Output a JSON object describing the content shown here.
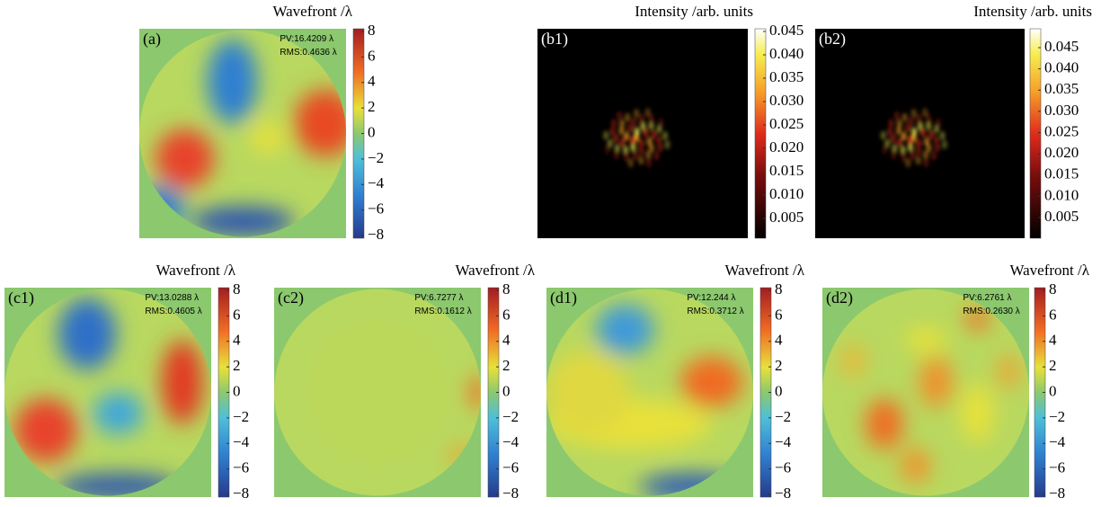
{
  "panels": [
    {
      "label": "(a)",
      "title": "Wavefront /λ",
      "pv": "PV:16.4209 λ",
      "rms": "RMS:0.4636 λ",
      "ticks": [
        "8",
        "6",
        "4",
        "2",
        "0",
        "−2",
        "−4",
        "−6",
        "−8"
      ]
    },
    {
      "label": "(b1)",
      "title": "Intensity /arb. units",
      "ticks": [
        "0.045",
        "0.040",
        "0.035",
        "0.030",
        "0.025",
        "0.020",
        "0.015",
        "0.010",
        "0.005"
      ]
    },
    {
      "label": "(b2)",
      "title": "Intensity /arb. units",
      "ticks": [
        "0.045",
        "0.040",
        "0.035",
        "0.030",
        "0.025",
        "0.020",
        "0.015",
        "0.010",
        "0.005"
      ]
    },
    {
      "label": "(c1)",
      "title": "Wavefront /λ",
      "pv": "PV:13.0288 λ",
      "rms": "RMS:0.4605 λ",
      "ticks": [
        "8",
        "6",
        "4",
        "2",
        "0",
        "−2",
        "−4",
        "−6",
        "−8"
      ]
    },
    {
      "label": "(c2)",
      "title": "Wavefront /λ",
      "pv": "PV:6.7277 λ",
      "rms": "RMS:0.1612 λ",
      "ticks": [
        "8",
        "6",
        "4",
        "2",
        "0",
        "−2",
        "−4",
        "−6",
        "−8"
      ]
    },
    {
      "label": "(d1)",
      "title": "Wavefront /λ",
      "pv": "PV:12.244 λ",
      "rms": "RMS:0.3712 λ",
      "ticks": [
        "8",
        "6",
        "4",
        "2",
        "0",
        "−2",
        "−4",
        "−6",
        "−8"
      ]
    },
    {
      "label": "(d2)",
      "title": "Wavefront /λ",
      "pv": "PV:6.2761 λ",
      "rms": "RMS:0.2630 λ",
      "ticks": [
        "8",
        "6",
        "4",
        "2",
        "0",
        "−2",
        "−4",
        "−6",
        "−8"
      ]
    }
  ]
}
